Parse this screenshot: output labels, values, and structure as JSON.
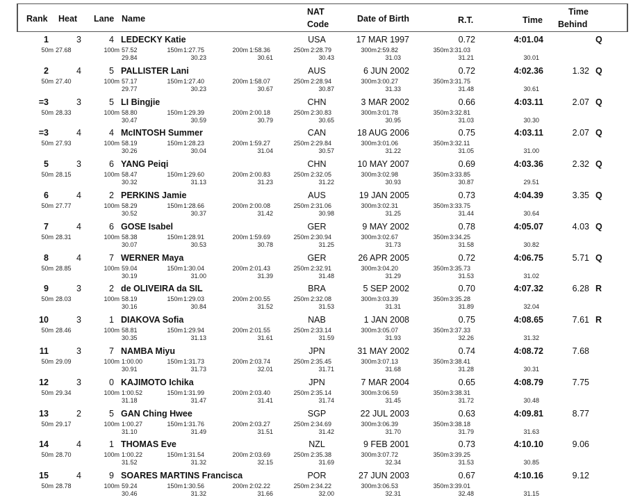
{
  "header": {
    "rank": "Rank",
    "heat": "Heat",
    "lane": "Lane",
    "name": "Name",
    "nat_line1": "NAT",
    "nat_line2": "Code",
    "dob": "Date of Birth",
    "rt": "R.T.",
    "time": "Time",
    "behind_line1": "Time",
    "behind_line2": "Behind"
  },
  "split_labels": [
    "50m",
    "100m",
    "150m",
    "200m",
    "250m",
    "300m",
    "350m"
  ],
  "rows": [
    {
      "rank": "1",
      "heat": "3",
      "lane": "4",
      "name": "LEDECKY Katie",
      "nat": "USA",
      "dob": "17 MAR 1997",
      "rt": "0.72",
      "time": "4:01.04",
      "behind": "",
      "q": "Q",
      "cum": [
        "27.68",
        "57.52",
        "1:27.75",
        "1:58.36",
        "2:28.79",
        "2:59.82",
        "3:31.03"
      ],
      "lap": [
        "29.84",
        "30.23",
        "30.61",
        "30.43",
        "31.03",
        "31.21",
        "30.01"
      ]
    },
    {
      "rank": "2",
      "heat": "4",
      "lane": "5",
      "name": "PALLISTER Lani",
      "nat": "AUS",
      "dob": "6 JUN 2002",
      "rt": "0.72",
      "time": "4:02.36",
      "behind": "1.32",
      "q": "Q",
      "cum": [
        "27.40",
        "57.17",
        "1:27.40",
        "1:58.07",
        "2:28.94",
        "3:00.27",
        "3:31.75"
      ],
      "lap": [
        "29.77",
        "30.23",
        "30.67",
        "30.87",
        "31.33",
        "31.48",
        "30.61"
      ]
    },
    {
      "rank": "=3",
      "heat": "3",
      "lane": "5",
      "name": "LI Bingjie",
      "nat": "CHN",
      "dob": "3 MAR 2002",
      "rt": "0.66",
      "time": "4:03.11",
      "behind": "2.07",
      "q": "Q",
      "cum": [
        "28.33",
        "58.80",
        "1:29.39",
        "2:00.18",
        "2:30.83",
        "3:01.78",
        "3:32.81"
      ],
      "lap": [
        "30.47",
        "30.59",
        "30.79",
        "30.65",
        "30.95",
        "31.03",
        "30.30"
      ]
    },
    {
      "rank": "=3",
      "heat": "4",
      "lane": "4",
      "name": "McINTOSH Summer",
      "nat": "CAN",
      "dob": "18 AUG 2006",
      "rt": "0.75",
      "time": "4:03.11",
      "behind": "2.07",
      "q": "Q",
      "cum": [
        "27.93",
        "58.19",
        "1:28.23",
        "1:59.27",
        "2:29.84",
        "3:01.06",
        "3:32.11"
      ],
      "lap": [
        "30.26",
        "30.04",
        "31.04",
        "30.57",
        "31.22",
        "31.05",
        "31.00"
      ]
    },
    {
      "rank": "5",
      "heat": "3",
      "lane": "6",
      "name": "YANG Peiqi",
      "nat": "CHN",
      "dob": "10 MAY 2007",
      "rt": "0.69",
      "time": "4:03.36",
      "behind": "2.32",
      "q": "Q",
      "cum": [
        "28.15",
        "58.47",
        "1:29.60",
        "2:00.83",
        "2:32.05",
        "3:02.98",
        "3:33.85"
      ],
      "lap": [
        "30.32",
        "31.13",
        "31.23",
        "31.22",
        "30.93",
        "30.87",
        "29.51"
      ]
    },
    {
      "rank": "6",
      "heat": "4",
      "lane": "2",
      "name": "PERKINS Jamie",
      "nat": "AUS",
      "dob": "19 JAN 2005",
      "rt": "0.73",
      "time": "4:04.39",
      "behind": "3.35",
      "q": "Q",
      "cum": [
        "27.77",
        "58.29",
        "1:28.66",
        "2:00.08",
        "2:31.06",
        "3:02.31",
        "3:33.75"
      ],
      "lap": [
        "30.52",
        "30.37",
        "31.42",
        "30.98",
        "31.25",
        "31.44",
        "30.64"
      ]
    },
    {
      "rank": "7",
      "heat": "4",
      "lane": "6",
      "name": "GOSE Isabel",
      "nat": "GER",
      "dob": "9 MAY 2002",
      "rt": "0.78",
      "time": "4:05.07",
      "behind": "4.03",
      "q": "Q",
      "cum": [
        "28.31",
        "58.38",
        "1:28.91",
        "1:59.69",
        "2:30.94",
        "3:02.67",
        "3:34.25"
      ],
      "lap": [
        "30.07",
        "30.53",
        "30.78",
        "31.25",
        "31.73",
        "31.58",
        "30.82"
      ]
    },
    {
      "rank": "8",
      "heat": "4",
      "lane": "7",
      "name": "WERNER Maya",
      "nat": "GER",
      "dob": "26 APR 2005",
      "rt": "0.72",
      "time": "4:06.75",
      "behind": "5.71",
      "q": "Q",
      "cum": [
        "28.85",
        "59.04",
        "1:30.04",
        "2:01.43",
        "2:32.91",
        "3:04.20",
        "3:35.73"
      ],
      "lap": [
        "30.19",
        "31.00",
        "31.39",
        "31.48",
        "31.29",
        "31.53",
        "31.02"
      ]
    },
    {
      "rank": "9",
      "heat": "3",
      "lane": "2",
      "name": "de OLIVEIRA da SIL",
      "nat": "BRA",
      "dob": "5 SEP 2002",
      "rt": "0.70",
      "time": "4:07.32",
      "behind": "6.28",
      "q": "R",
      "cum": [
        "28.03",
        "58.19",
        "1:29.03",
        "2:00.55",
        "2:32.08",
        "3:03.39",
        "3:35.28"
      ],
      "lap": [
        "30.16",
        "30.84",
        "31.52",
        "31.53",
        "31.31",
        "31.89",
        "32.04"
      ]
    },
    {
      "rank": "10",
      "heat": "3",
      "lane": "1",
      "name": "DIAKOVA Sofia",
      "nat": "NAB",
      "dob": "1 JAN 2008",
      "rt": "0.75",
      "time": "4:08.65",
      "behind": "7.61",
      "q": "R",
      "cum": [
        "28.46",
        "58.81",
        "1:29.94",
        "2:01.55",
        "2:33.14",
        "3:05.07",
        "3:37.33"
      ],
      "lap": [
        "30.35",
        "31.13",
        "31.61",
        "31.59",
        "31.93",
        "32.26",
        "31.32"
      ]
    },
    {
      "rank": "11",
      "heat": "3",
      "lane": "7",
      "name": "NAMBA Miyu",
      "nat": "JPN",
      "dob": "31 MAY 2002",
      "rt": "0.74",
      "time": "4:08.72",
      "behind": "7.68",
      "q": "",
      "cum": [
        "29.09",
        "1:00.00",
        "1:31.73",
        "2:03.74",
        "2:35.45",
        "3:07.13",
        "3:38.41"
      ],
      "lap": [
        "30.91",
        "31.73",
        "32.01",
        "31.71",
        "31.68",
        "31.28",
        "30.31"
      ]
    },
    {
      "rank": "12",
      "heat": "3",
      "lane": "0",
      "name": "KAJIMOTO Ichika",
      "nat": "JPN",
      "dob": "7 MAR 2004",
      "rt": "0.65",
      "time": "4:08.79",
      "behind": "7.75",
      "q": "",
      "cum": [
        "29.34",
        "1:00.52",
        "1:31.99",
        "2:03.40",
        "2:35.14",
        "3:06.59",
        "3:38.31"
      ],
      "lap": [
        "31.18",
        "31.47",
        "31.41",
        "31.74",
        "31.45",
        "31.72",
        "30.48"
      ]
    },
    {
      "rank": "13",
      "heat": "2",
      "lane": "5",
      "name": "GAN Ching Hwee",
      "nat": "SGP",
      "dob": "22 JUL 2003",
      "rt": "0.63",
      "time": "4:09.81",
      "behind": "8.77",
      "q": "",
      "cum": [
        "29.17",
        "1:00.27",
        "1:31.76",
        "2:03.27",
        "2:34.69",
        "3:06.39",
        "3:38.18"
      ],
      "lap": [
        "31.10",
        "31.49",
        "31.51",
        "31.42",
        "31.70",
        "31.79",
        "31.63"
      ]
    },
    {
      "rank": "14",
      "heat": "4",
      "lane": "1",
      "name": "THOMAS Eve",
      "nat": "NZL",
      "dob": "9 FEB 2001",
      "rt": "0.73",
      "time": "4:10.10",
      "behind": "9.06",
      "q": "",
      "cum": [
        "28.70",
        "1:00.22",
        "1:31.54",
        "2:03.69",
        "2:35.38",
        "3:07.72",
        "3:39.25"
      ],
      "lap": [
        "31.52",
        "31.32",
        "32.15",
        "31.69",
        "32.34",
        "31.53",
        "30.85"
      ]
    },
    {
      "rank": "15",
      "heat": "4",
      "lane": "9",
      "name": "SOARES MARTINS Francisca",
      "nat": "POR",
      "dob": "27 JUN 2003",
      "rt": "0.67",
      "time": "4:10.16",
      "behind": "9.12",
      "q": "",
      "cum": [
        "28.78",
        "59.24",
        "1:30.56",
        "2:02.22",
        "2:34.22",
        "3:06.53",
        "3:39.01"
      ],
      "lap": [
        "30.46",
        "31.32",
        "31.66",
        "32.00",
        "32.31",
        "32.48",
        "31.15"
      ]
    }
  ]
}
